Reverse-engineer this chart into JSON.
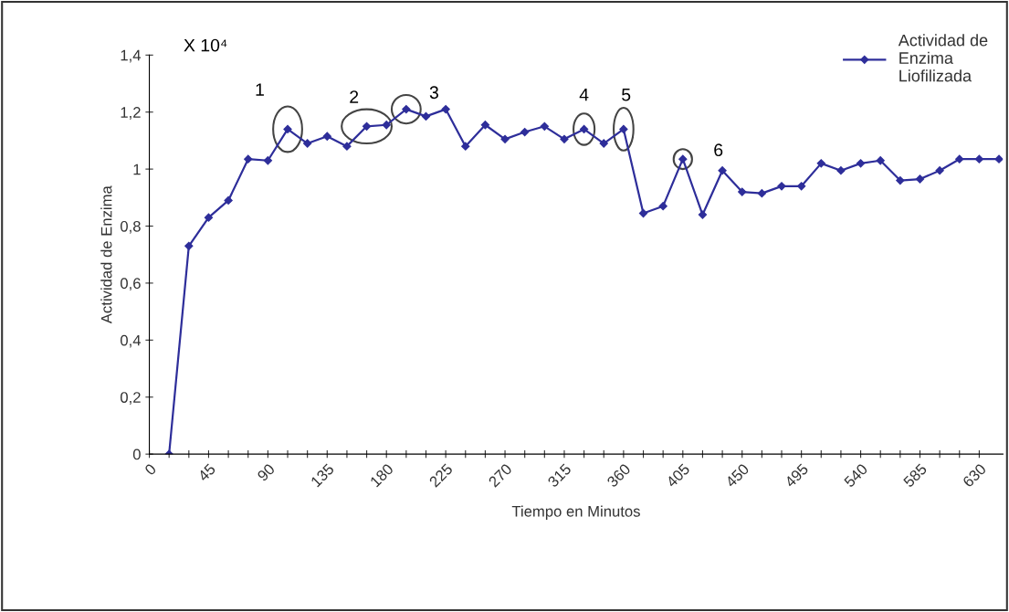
{
  "chart_data": {
    "type": "line",
    "xlabel": "Tiempo en Minutos",
    "ylabel": "Actividad de Enzima",
    "x": [
      15,
      30,
      45,
      60,
      75,
      90,
      105,
      120,
      135,
      150,
      165,
      180,
      195,
      210,
      225,
      240,
      255,
      270,
      285,
      300,
      315,
      330,
      345,
      360,
      375,
      390,
      405,
      420,
      435,
      450,
      465,
      480,
      495,
      510,
      525,
      540,
      555,
      570,
      585,
      600,
      615,
      630,
      645
    ],
    "series": [
      {
        "name": "Actividad de Enzima Liofilizada",
        "color": "#2e2e9a",
        "values": [
          0,
          0.73,
          0.83,
          0.89,
          1.035,
          1.03,
          1.14,
          1.09,
          1.115,
          1.08,
          1.15,
          1.155,
          1.21,
          1.185,
          1.21,
          1.08,
          1.155,
          1.105,
          1.13,
          1.15,
          1.105,
          1.14,
          1.09,
          1.14,
          0.845,
          0.87,
          1.035,
          0.84,
          0.995,
          0.92,
          0.915,
          0.94,
          0.94,
          1.02,
          0.995,
          1.02,
          1.03,
          0.96,
          0.965,
          0.995,
          1.035,
          1.035,
          1.035
        ]
      }
    ],
    "xlim": [
      0,
      648
    ],
    "xticks": [
      0,
      {
        "value": 15,
        "label": null
      },
      {
        "value": 30,
        "label": null
      },
      45,
      {
        "value": 60,
        "label": null
      },
      {
        "value": 75,
        "label": null
      },
      90,
      {
        "value": 105,
        "label": null
      },
      {
        "value": 120,
        "label": null
      },
      135,
      {
        "value": 150,
        "label": null
      },
      {
        "value": 165,
        "label": null
      },
      180,
      {
        "value": 195,
        "label": null
      },
      {
        "value": 210,
        "label": null
      },
      225,
      {
        "value": 240,
        "label": null
      },
      {
        "value": 255,
        "label": null
      },
      270,
      {
        "value": 285,
        "label": null
      },
      {
        "value": 300,
        "label": null
      },
      315,
      {
        "value": 330,
        "label": null
      },
      {
        "value": 345,
        "label": null
      },
      360,
      {
        "value": 375,
        "label": null
      },
      {
        "value": 390,
        "label": null
      },
      405,
      {
        "value": 420,
        "label": null
      },
      {
        "value": 435,
        "label": null
      },
      450,
      {
        "value": 465,
        "label": null
      },
      {
        "value": 480,
        "label": null
      },
      495,
      {
        "value": 510,
        "label": null
      },
      {
        "value": 525,
        "label": null
      },
      540,
      {
        "value": 555,
        "label": null
      },
      {
        "value": 570,
        "label": null
      },
      585,
      {
        "value": 600,
        "label": null
      },
      {
        "value": 615,
        "label": null
      },
      630
    ],
    "ylim": [
      0,
      1.4
    ],
    "yticks": [
      {
        "value": 0,
        "label": "0"
      },
      {
        "value": 0.2,
        "label": "0,2"
      },
      {
        "value": 0.4,
        "label": "0,4"
      },
      {
        "value": 0.6,
        "label": "0,6"
      },
      {
        "value": 0.8,
        "label": "0,8"
      },
      {
        "value": 1,
        "label": "1"
      },
      {
        "value": 1.2,
        "label": "1,2"
      },
      {
        "value": 1.4,
        "label": "1,4"
      }
    ],
    "annotations": [
      "X 10⁴",
      {
        "text": "1",
        "x": 105,
        "y": 1.14
      },
      {
        "text": "2",
        "x": 165,
        "y": 1.15
      },
      {
        "text": "3",
        "x": 195,
        "y": 1.21
      },
      {
        "text": "4",
        "x": 330,
        "y": 1.14
      },
      {
        "text": "5",
        "x": 360,
        "y": 1.14
      },
      {
        "text": "6",
        "x": 405,
        "y": 1.035
      }
    ],
    "grid": false,
    "legend": "top right",
    "marker": "diamond",
    "line_style": "solid"
  }
}
